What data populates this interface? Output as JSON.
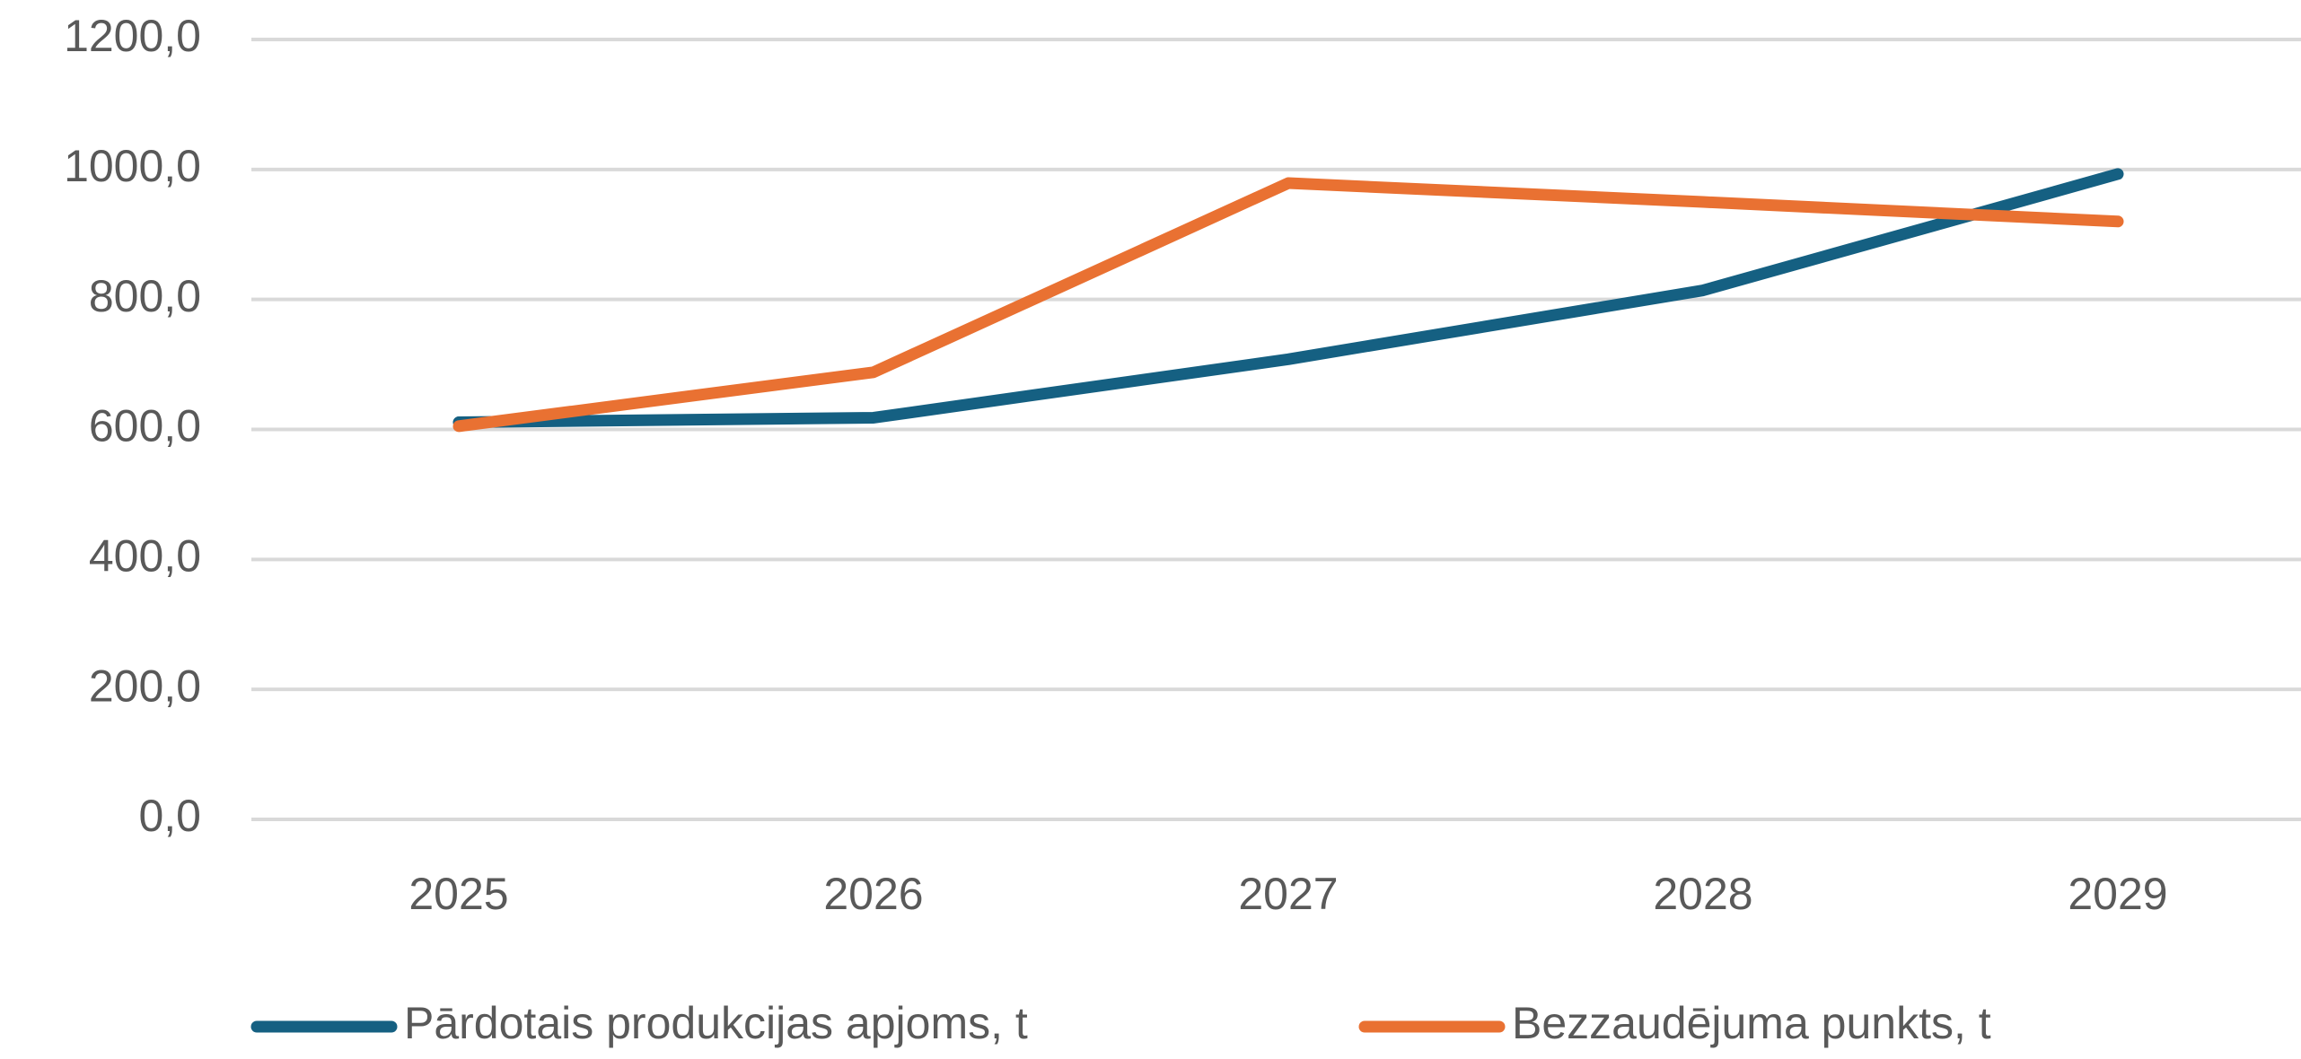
{
  "chart_data": {
    "type": "line",
    "categories": [
      "2025",
      "2026",
      "2027",
      "2028",
      "2029"
    ],
    "series": [
      {
        "name": "Pārdotais produkcijas apjoms, t",
        "color": "#156082",
        "values": [
          611,
          618,
          708,
          814,
          993
        ]
      },
      {
        "name": "Bezzaudējuma punkts, t",
        "color": "#e97132",
        "values": [
          605,
          688,
          979,
          950,
          920
        ]
      }
    ],
    "ylim": [
      0,
      1200
    ],
    "yticks": [
      {
        "value": 0,
        "label": "0,0"
      },
      {
        "value": 200,
        "label": "200,0"
      },
      {
        "value": 400,
        "label": "400,0"
      },
      {
        "value": 600,
        "label": "600,0"
      },
      {
        "value": 800,
        "label": "800,0"
      },
      {
        "value": 1000,
        "label": "1000,0"
      },
      {
        "value": 1200,
        "label": "1200,0"
      }
    ],
    "grid": true,
    "legend": "bottom"
  }
}
